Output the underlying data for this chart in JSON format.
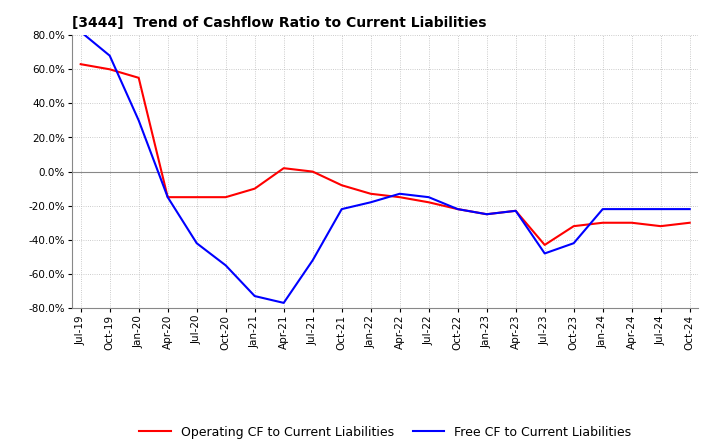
{
  "title": "[3444]  Trend of Cashflow Ratio to Current Liabilities",
  "x_labels": [
    "Jul-19",
    "Oct-19",
    "Jan-20",
    "Apr-20",
    "Jul-20",
    "Oct-20",
    "Jan-21",
    "Apr-21",
    "Jul-21",
    "Oct-21",
    "Jan-22",
    "Apr-22",
    "Jul-22",
    "Oct-22",
    "Jan-23",
    "Apr-23",
    "Jul-23",
    "Oct-23",
    "Jan-24",
    "Apr-24",
    "Jul-24",
    "Oct-24"
  ],
  "operating_cf": [
    63,
    60,
    55,
    -15,
    -15,
    -15,
    -10,
    2,
    0,
    -8,
    -13,
    -15,
    -18,
    -22,
    -25,
    -23,
    -43,
    -32,
    -30,
    -30,
    -32,
    -30
  ],
  "free_cf": [
    82,
    68,
    30,
    -15,
    -42,
    -55,
    -73,
    -77,
    -52,
    -22,
    -18,
    -13,
    -15,
    -22,
    -25,
    -23,
    -48,
    -42,
    -22,
    -22,
    -22,
    -22
  ],
  "operating_color": "#ff0000",
  "free_color": "#0000ff",
  "ylim": [
    -80,
    80
  ],
  "yticks": [
    -80,
    -60,
    -40,
    -20,
    0,
    20,
    40,
    60,
    80
  ],
  "background_color": "#ffffff",
  "grid_color": "#bbbbbb",
  "legend_labels": [
    "Operating CF to Current Liabilities",
    "Free CF to Current Liabilities"
  ]
}
